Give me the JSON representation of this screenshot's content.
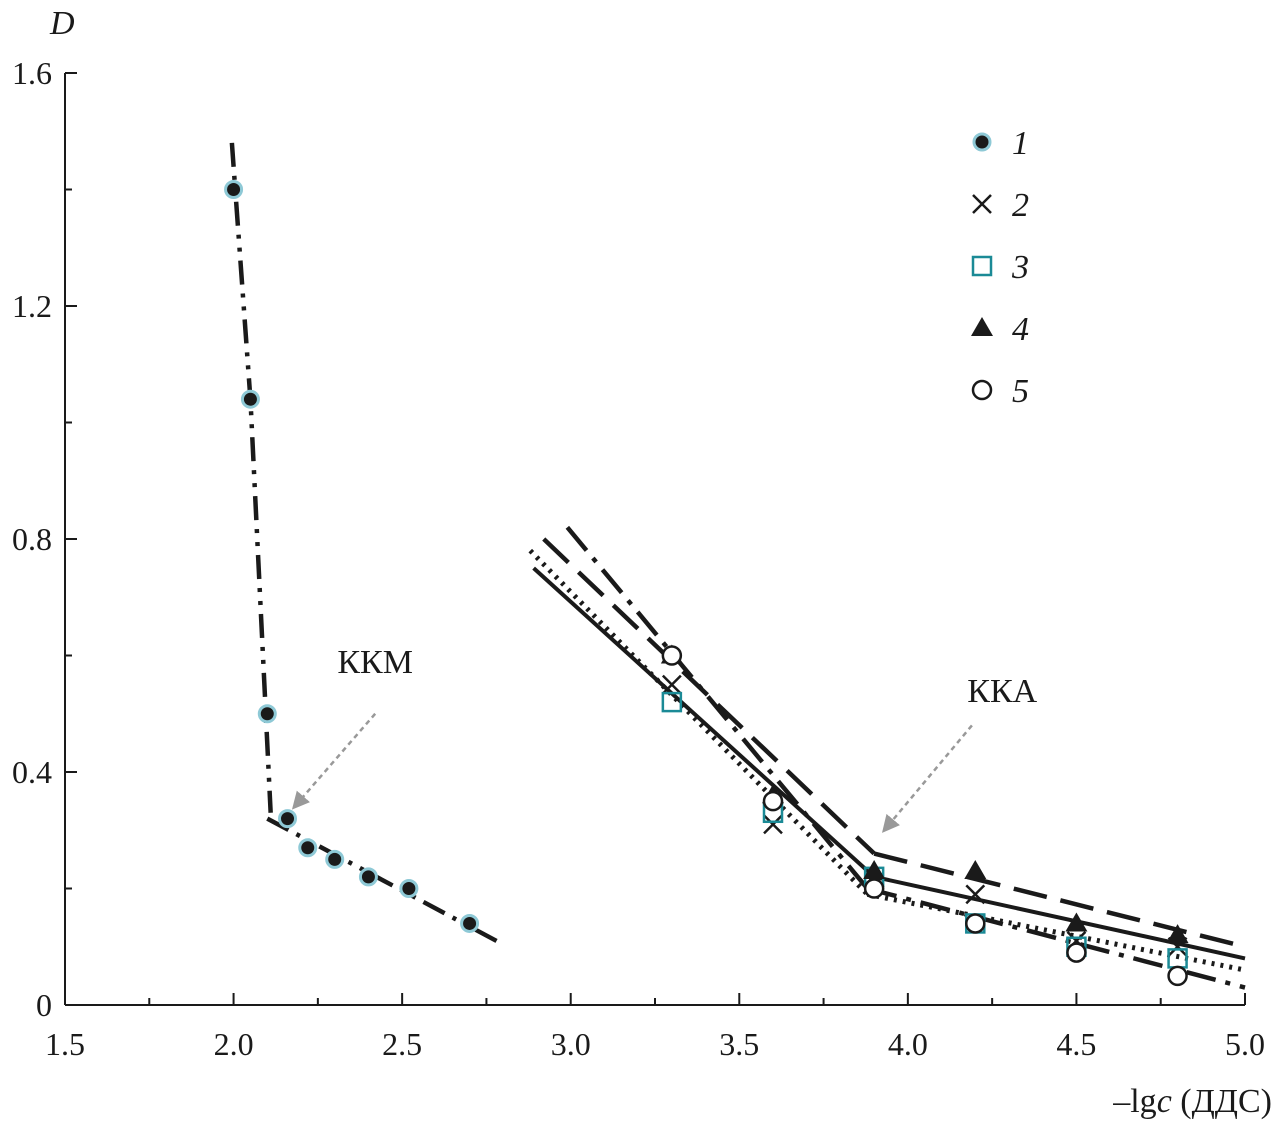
{
  "chart_data": {
    "type": "scatter",
    "title": "",
    "xlabel": "–lgc (ДДС)",
    "xlabel_parts": [
      "–lg",
      "c",
      " (ДДС)"
    ],
    "ylabel": "D",
    "xlim": [
      1.5,
      5.0
    ],
    "ylim": [
      0,
      1.6
    ],
    "xticks": [
      "1.5",
      "2.0",
      "2.5",
      "3.0",
      "3.5",
      "4.0",
      "4.5",
      "5.0"
    ],
    "xtick_values": [
      1.5,
      2.0,
      2.5,
      3.0,
      3.5,
      4.0,
      4.5,
      5.0
    ],
    "yticks": [
      "0",
      "0.4",
      "0.8",
      "1.2",
      "1.6"
    ],
    "ytick_values": [
      0,
      0.4,
      0.8,
      1.2,
      1.6
    ],
    "grid": false,
    "legend_position": "top-right",
    "series": [
      {
        "name": "1",
        "marker": "filled-circle-ringed",
        "color": "#1a1a1a",
        "ring_color": "#8ec9d6",
        "x": [
          2.0,
          2.05,
          2.1,
          2.16,
          2.22,
          2.3,
          2.4,
          2.52,
          2.7
        ],
        "y": [
          1.4,
          1.04,
          0.5,
          0.32,
          0.27,
          0.25,
          0.22,
          0.2,
          0.14
        ]
      },
      {
        "name": "2",
        "marker": "cross",
        "color": "#1a1a1a",
        "x": [
          3.3,
          3.6,
          3.9,
          4.2,
          4.5,
          4.8
        ],
        "y": [
          0.55,
          0.31,
          0.21,
          0.19,
          0.11,
          0.1
        ]
      },
      {
        "name": "3",
        "marker": "open-square",
        "color": "#1b8a96",
        "x": [
          3.3,
          3.6,
          3.9,
          4.2,
          4.5,
          4.8
        ],
        "y": [
          0.52,
          0.33,
          0.22,
          0.14,
          0.1,
          0.08
        ]
      },
      {
        "name": "4",
        "marker": "filled-triangle",
        "color": "#1a1a1a",
        "x": [
          3.3,
          3.6,
          3.9,
          4.2,
          4.5,
          4.8
        ],
        "y": [
          0.6,
          0.36,
          0.23,
          0.23,
          0.14,
          0.12
        ]
      },
      {
        "name": "5",
        "marker": "open-circle",
        "color": "#1a1a1a",
        "x": [
          3.3,
          3.6,
          3.9,
          4.2,
          4.5,
          4.8
        ],
        "y": [
          0.6,
          0.35,
          0.2,
          0.14,
          0.09,
          0.05
        ]
      }
    ],
    "fit_lines": [
      {
        "name": "kkm-fit-steep",
        "style": "dash-dot-dot",
        "points": [
          [
            1.995,
            1.48
          ],
          [
            2.05,
            1.04
          ],
          [
            2.11,
            0.33
          ]
        ]
      },
      {
        "name": "kkm-fit-shallow",
        "style": "dash-dot-dot",
        "points": [
          [
            2.1,
            0.32
          ],
          [
            2.78,
            0.11
          ]
        ]
      },
      {
        "name": "kka-fit-solid-a",
        "style": "solid",
        "points": [
          [
            2.89,
            0.75
          ],
          [
            3.9,
            0.22
          ]
        ]
      },
      {
        "name": "kka-fit-solid-b",
        "style": "solid",
        "points": [
          [
            3.9,
            0.22
          ],
          [
            5.0,
            0.08
          ]
        ]
      },
      {
        "name": "kka-fit-dashed-a",
        "style": "dashed",
        "points": [
          [
            2.92,
            0.8
          ],
          [
            3.9,
            0.26
          ]
        ]
      },
      {
        "name": "kka-fit-dashed-b",
        "style": "dashed",
        "points": [
          [
            3.9,
            0.26
          ],
          [
            5.0,
            0.1
          ]
        ]
      },
      {
        "name": "kka-fit-dashdot-a",
        "style": "dash-dot",
        "points": [
          [
            2.99,
            0.82
          ],
          [
            3.88,
            0.2
          ]
        ]
      },
      {
        "name": "kka-fit-dashdot-b",
        "style": "dash-dot",
        "points": [
          [
            3.88,
            0.2
          ],
          [
            5.0,
            0.03
          ]
        ]
      },
      {
        "name": "kka-fit-dotted-a",
        "style": "dotted",
        "points": [
          [
            2.88,
            0.78
          ],
          [
            3.88,
            0.19
          ]
        ]
      },
      {
        "name": "kka-fit-dotted-b",
        "style": "dotted",
        "points": [
          [
            3.88,
            0.19
          ],
          [
            5.0,
            0.06
          ]
        ]
      }
    ],
    "annotations": [
      {
        "name": "kkm",
        "text": "ККМ",
        "anchor": [
          2.18,
          0.34
        ],
        "label_at": [
          2.42,
          0.57
        ],
        "arrow_from": [
          2.42,
          0.5
        ]
      },
      {
        "name": "kka",
        "text": "ККА",
        "anchor": [
          3.93,
          0.3
        ],
        "label_at": [
          4.28,
          0.52
        ],
        "arrow_from": [
          4.19,
          0.48
        ]
      }
    ]
  }
}
